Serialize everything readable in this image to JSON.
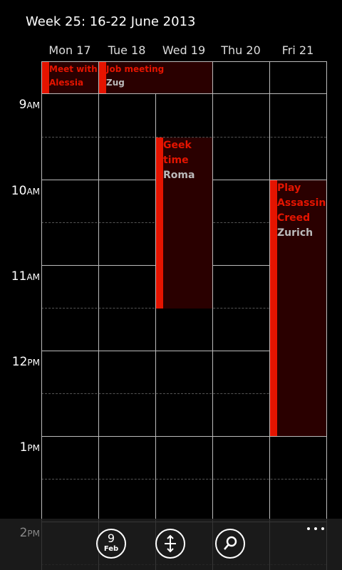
{
  "header": {
    "title": "Week 25: 16-22 June 2013"
  },
  "days": [
    "Mon 17",
    "Tue 18",
    "Wed 19",
    "Thu 20",
    "Fri 21"
  ],
  "hours": [
    {
      "hour": "9",
      "suffix": "AM"
    },
    {
      "hour": "10",
      "suffix": "AM"
    },
    {
      "hour": "11",
      "suffix": "AM"
    },
    {
      "hour": "12",
      "suffix": "PM"
    },
    {
      "hour": "1",
      "suffix": "PM"
    },
    {
      "hour": "2",
      "suffix": "PM"
    }
  ],
  "all_day_events": [
    {
      "title": "Meet with Alessia"
    },
    {
      "title": "Job meeting",
      "location": "Zug"
    }
  ],
  "events": [
    {
      "title": "Geek time",
      "location": "Roma"
    },
    {
      "title": "Play Assassin Creed",
      "location": "Zurich"
    }
  ],
  "app_bar": {
    "today_day": "9",
    "today_month": "Feb"
  }
}
